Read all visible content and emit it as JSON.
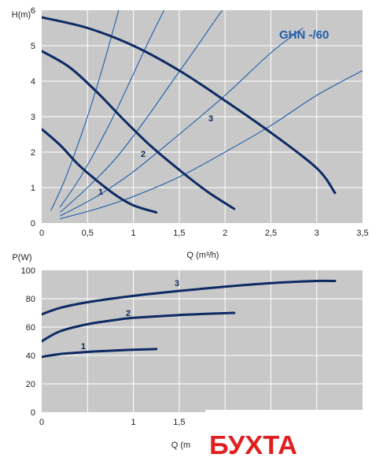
{
  "colors": {
    "plot_bg": "#c8c8c8",
    "grid": "#ffffff",
    "curve": "#0d2a63",
    "system_curve": "#1f5ea8",
    "model_label": "#1f5ea8",
    "watermark": "#e02020"
  },
  "model_label": "GHN -/60",
  "watermark_text": "БУХТА",
  "chart_data": [
    {
      "type": "line",
      "ylabel": "H(m)",
      "xlabel": "Q (m³/h)",
      "xlim": [
        0,
        3.5
      ],
      "ylim": [
        0,
        6
      ],
      "x_ticks": [
        "0",
        "0,5",
        "1",
        "1,5",
        "2",
        "2,5",
        "3",
        "3,5"
      ],
      "y_ticks": [
        "0",
        "1",
        "2",
        "3",
        "4",
        "5",
        "6"
      ],
      "grid": true,
      "series": [
        {
          "name": "1",
          "x": [
            0,
            0.2,
            0.4,
            0.6,
            0.8,
            1.0,
            1.25
          ],
          "y": [
            2.65,
            2.2,
            1.65,
            1.2,
            0.8,
            0.5,
            0.3
          ]
        },
        {
          "name": "2",
          "x": [
            0,
            0.3,
            0.6,
            0.9,
            1.2,
            1.5,
            1.8,
            2.1
          ],
          "y": [
            4.85,
            4.4,
            3.7,
            2.9,
            2.15,
            1.5,
            0.9,
            0.4
          ]
        },
        {
          "name": "3",
          "x": [
            0,
            0.5,
            1.0,
            1.5,
            2.0,
            2.5,
            3.0,
            3.2
          ],
          "y": [
            5.8,
            5.5,
            5.0,
            4.3,
            3.45,
            2.55,
            1.55,
            0.85
          ]
        }
      ],
      "system_curves": [
        {
          "x": [
            0.2,
            0.6,
            1.0,
            1.5,
            2.0,
            2.5,
            3.0,
            3.5
          ],
          "y": [
            0.12,
            0.4,
            0.75,
            1.3,
            2.0,
            2.75,
            3.6,
            4.3
          ]
        },
        {
          "x": [
            0.2,
            0.6,
            1.0,
            1.5,
            2.0,
            2.5,
            2.85
          ],
          "y": [
            0.2,
            0.75,
            1.45,
            2.5,
            3.6,
            4.8,
            5.5
          ]
        },
        {
          "x": [
            0.2,
            0.5,
            0.8,
            1.1,
            1.4,
            1.7,
            2.0,
            2.3
          ],
          "y": [
            0.3,
            1.0,
            1.8,
            2.8,
            3.9,
            5.0,
            6.1,
            7.0
          ]
        },
        {
          "x": [
            0.2,
            0.4,
            0.6,
            0.8,
            1.0,
            1.2,
            1.4,
            1.6
          ],
          "y": [
            0.45,
            1.2,
            2.1,
            3.1,
            4.2,
            5.3,
            6.3,
            7.0
          ]
        },
        {
          "x": [
            0.1,
            0.25,
            0.4,
            0.55,
            0.7,
            0.85,
            0.95
          ],
          "y": [
            0.35,
            1.2,
            2.25,
            3.4,
            4.7,
            6.1,
            7.0
          ]
        }
      ]
    },
    {
      "type": "line",
      "ylabel": "P(W)",
      "xlabel": "Q (m",
      "xlim": [
        0,
        3.5
      ],
      "ylim": [
        0,
        100
      ],
      "x_ticks": [
        "0",
        "1",
        "1,5"
      ],
      "y_ticks": [
        "0",
        "20",
        "40",
        "60",
        "80",
        "100"
      ],
      "grid": true,
      "series": [
        {
          "name": "1",
          "x": [
            0,
            0.2,
            0.5,
            0.8,
            1.0,
            1.25
          ],
          "y": [
            39,
            41,
            42.5,
            43.5,
            44,
            44.5
          ]
        },
        {
          "name": "2",
          "x": [
            0,
            0.2,
            0.5,
            0.8,
            1.0,
            1.5,
            2.0,
            2.1
          ],
          "y": [
            50,
            57,
            62,
            65,
            66.5,
            68.5,
            69.8,
            70
          ]
        },
        {
          "name": "3",
          "x": [
            0,
            0.2,
            0.5,
            1.0,
            1.5,
            2.0,
            2.5,
            3.0,
            3.2
          ],
          "y": [
            69,
            73.5,
            77.5,
            82,
            85.5,
            88.5,
            91,
            92.5,
            92.5
          ]
        }
      ]
    }
  ]
}
